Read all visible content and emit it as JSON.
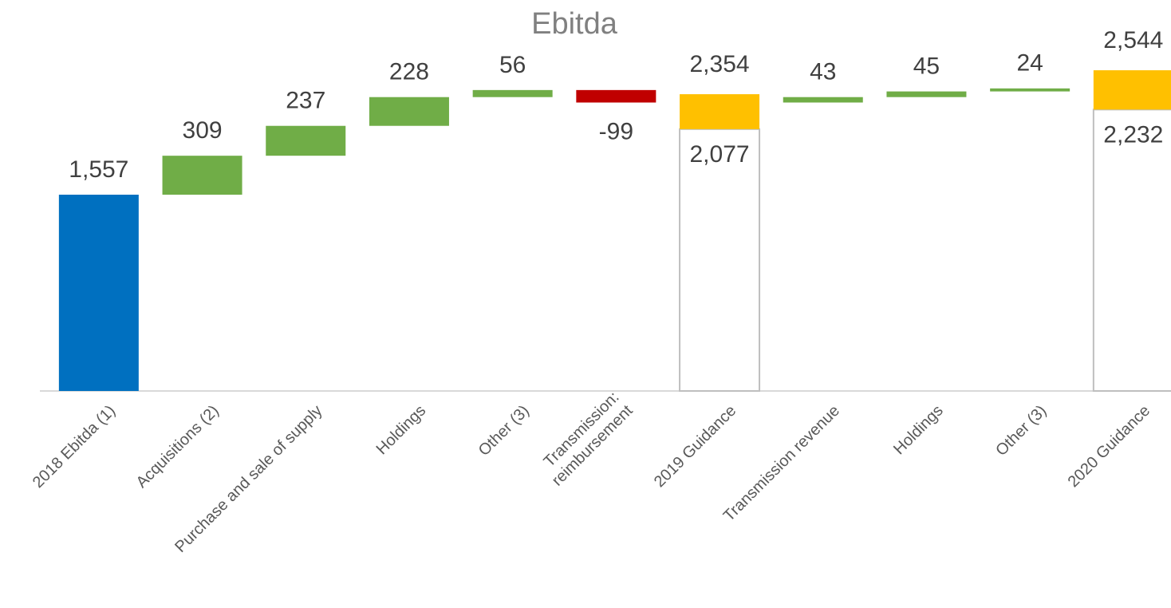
{
  "chart_data": {
    "type": "waterfall",
    "title": "Ebitda",
    "categories": [
      "2018 Ebitda (1)",
      "Acquisitions (2)",
      "Purchase and sale of supply",
      "Holdings",
      "Other (3)",
      [
        "Transmission:",
        "reimbursement"
      ],
      "2019 Guidance",
      "Transmission revenue",
      "Holdings",
      "Other (3)",
      "2020 Guidance"
    ],
    "values": [
      1557,
      309,
      237,
      228,
      56,
      -99,
      [
        2077,
        2354
      ],
      43,
      45,
      24,
      [
        2232,
        2544
      ]
    ],
    "value_labels": [
      "1,557",
      "309",
      "237",
      "228",
      "56",
      "-99",
      [
        "2,077",
        "2,354"
      ],
      "43",
      "45",
      "24",
      [
        "2,232",
        "2,544"
      ]
    ],
    "colors": {
      "start": "#0070c0",
      "increase": "#70ad47",
      "decrease": "#c00000",
      "range": "#ffc000",
      "range_base": "#ffffff"
    },
    "ylim": [
      0,
      3000
    ]
  }
}
